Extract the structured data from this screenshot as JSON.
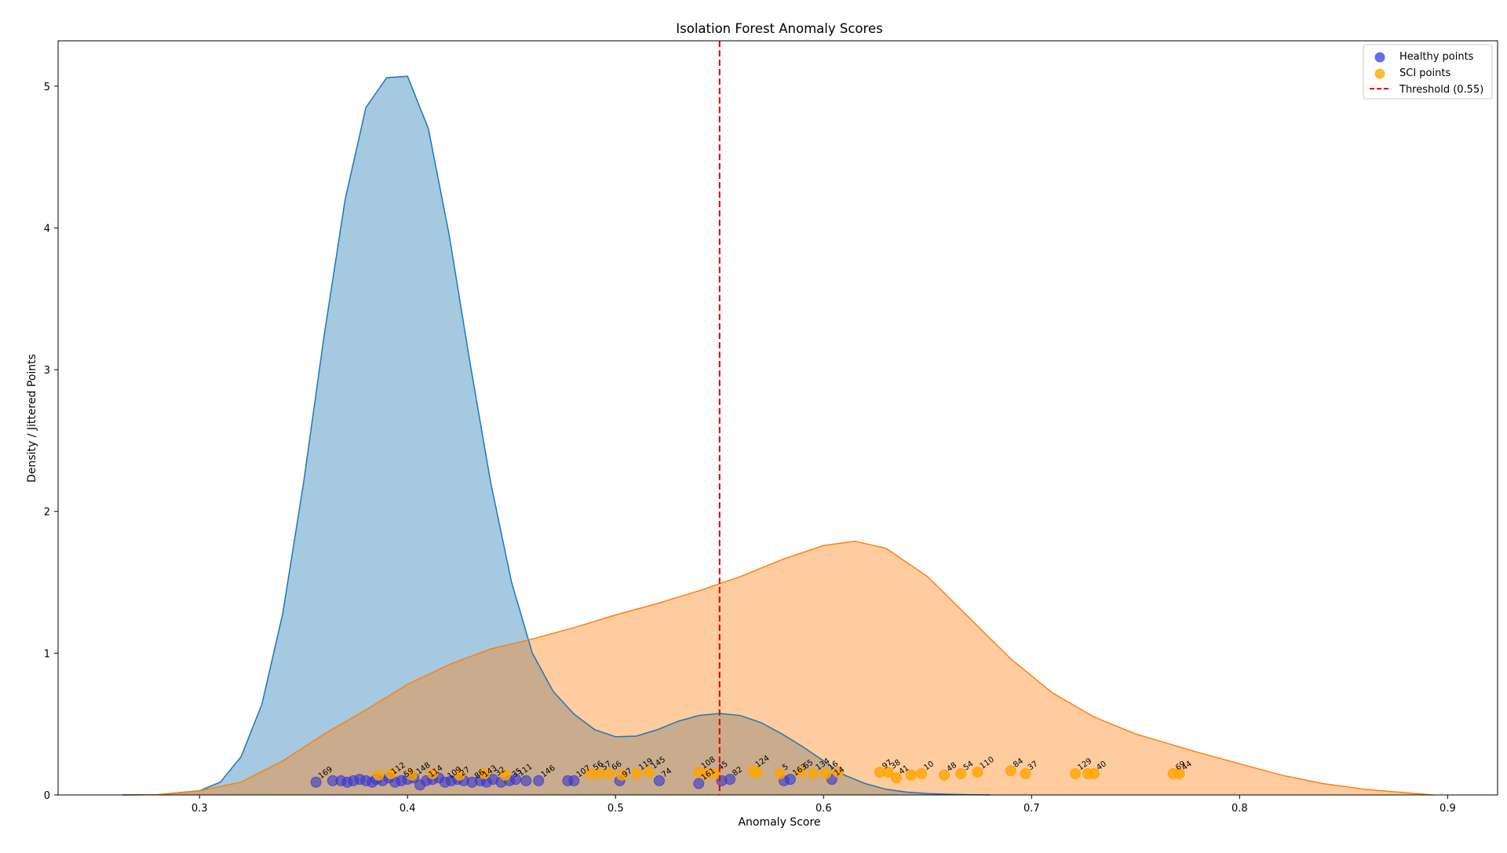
{
  "chart_data": {
    "type": "area",
    "title": "Isolation Forest Anomaly Scores",
    "xlabel": "Anomaly Score",
    "ylabel": "Density / Jittered Points",
    "xlim": [
      0.232,
      0.924
    ],
    "ylim": [
      0,
      5.32
    ],
    "x_ticks": [
      "0.3",
      "0.4",
      "0.5",
      "0.6",
      "0.7",
      "0.8",
      "0.9"
    ],
    "x_tick_values": [
      0.3,
      0.4,
      0.5,
      0.6,
      0.7,
      0.8,
      0.9
    ],
    "y_ticks": [
      "0",
      "1",
      "2",
      "3",
      "4",
      "5"
    ],
    "y_tick_values": [
      0,
      1,
      2,
      3,
      4,
      5
    ],
    "grid": false,
    "legend_position": "top-right",
    "colors": {
      "healthy_fill": "#1f77b4",
      "healthy_line": "#1f77b4",
      "sci_fill": "#ff7f0e",
      "sci_line": "#ff7f0e",
      "healthy_points": "#3535d0",
      "sci_points": "#ffa500",
      "threshold": "#e00000",
      "label_dark": "#333333",
      "label_red": "#e52222"
    },
    "threshold": {
      "value": 0.55,
      "label": "Threshold (0.55)"
    },
    "legend": [
      {
        "key": "healthy",
        "label": "Healthy points",
        "color": "#6a6ae6",
        "kind": "marker"
      },
      {
        "key": "sci",
        "label": "SCI points",
        "color": "#ffbb33",
        "kind": "marker"
      },
      {
        "key": "threshold",
        "label": "Threshold (0.55)",
        "color": "#e00000",
        "kind": "dashed"
      }
    ],
    "series": [
      {
        "key": "healthy_density",
        "kind": "density",
        "x": [
          0.263,
          0.28,
          0.3,
          0.31,
          0.32,
          0.33,
          0.34,
          0.35,
          0.36,
          0.37,
          0.38,
          0.39,
          0.4,
          0.41,
          0.42,
          0.43,
          0.44,
          0.45,
          0.46,
          0.47,
          0.48,
          0.49,
          0.5,
          0.51,
          0.52,
          0.53,
          0.54,
          0.55,
          0.56,
          0.57,
          0.58,
          0.59,
          0.6,
          0.61,
          0.62,
          0.63,
          0.64,
          0.65,
          0.66,
          0.67,
          0.68
        ],
        "y": [
          0,
          0.002,
          0.03,
          0.09,
          0.27,
          0.64,
          1.28,
          2.2,
          3.25,
          4.2,
          4.85,
          5.06,
          5.07,
          4.7,
          3.95,
          3.05,
          2.2,
          1.5,
          1.0,
          0.73,
          0.57,
          0.46,
          0.41,
          0.415,
          0.46,
          0.52,
          0.56,
          0.575,
          0.56,
          0.51,
          0.43,
          0.34,
          0.24,
          0.14,
          0.08,
          0.04,
          0.02,
          0.01,
          0.005,
          0.002,
          0
        ]
      },
      {
        "key": "sci_density",
        "kind": "density",
        "x": [
          0.263,
          0.28,
          0.3,
          0.32,
          0.34,
          0.36,
          0.38,
          0.4,
          0.42,
          0.44,
          0.46,
          0.48,
          0.5,
          0.52,
          0.54,
          0.56,
          0.58,
          0.6,
          0.615,
          0.63,
          0.65,
          0.67,
          0.69,
          0.71,
          0.73,
          0.75,
          0.78,
          0.8,
          0.82,
          0.84,
          0.86,
          0.88,
          0.893
        ],
        "y": [
          0,
          0.002,
          0.03,
          0.09,
          0.24,
          0.43,
          0.6,
          0.78,
          0.92,
          1.03,
          1.1,
          1.18,
          1.27,
          1.35,
          1.44,
          1.54,
          1.66,
          1.76,
          1.79,
          1.74,
          1.54,
          1.25,
          0.96,
          0.72,
          0.55,
          0.43,
          0.3,
          0.22,
          0.14,
          0.08,
          0.04,
          0.015,
          0
        ]
      }
    ],
    "healthy_points": [
      {
        "x": 0.356,
        "y": 0.09,
        "label": "169"
      },
      {
        "x": 0.364,
        "y": 0.1,
        "label": ""
      },
      {
        "x": 0.368,
        "y": 0.1,
        "label": ""
      },
      {
        "x": 0.371,
        "y": 0.09,
        "label": ""
      },
      {
        "x": 0.374,
        "y": 0.1,
        "label": ""
      },
      {
        "x": 0.377,
        "y": 0.11,
        "label": ""
      },
      {
        "x": 0.38,
        "y": 0.1,
        "label": ""
      },
      {
        "x": 0.383,
        "y": 0.09,
        "label": ""
      },
      {
        "x": 0.385,
        "y": 0.11,
        "label": ""
      },
      {
        "x": 0.388,
        "y": 0.1,
        "label": ""
      },
      {
        "x": 0.391,
        "y": 0.12,
        "label": "112"
      },
      {
        "x": 0.394,
        "y": 0.09,
        "label": ""
      },
      {
        "x": 0.397,
        "y": 0.1,
        "label": "59"
      },
      {
        "x": 0.4,
        "y": 0.11,
        "label": ""
      },
      {
        "x": 0.403,
        "y": 0.12,
        "label": "148"
      },
      {
        "x": 0.406,
        "y": 0.07,
        "label": ""
      },
      {
        "x": 0.409,
        "y": 0.1,
        "label": "114"
      },
      {
        "x": 0.412,
        "y": 0.11,
        "label": ""
      },
      {
        "x": 0.415,
        "y": 0.12,
        "label": ""
      },
      {
        "x": 0.418,
        "y": 0.09,
        "label": "109"
      },
      {
        "x": 0.421,
        "y": 0.1,
        "label": ""
      },
      {
        "x": 0.424,
        "y": 0.11,
        "label": "27"
      },
      {
        "x": 0.427,
        "y": 0.1,
        "label": ""
      },
      {
        "x": 0.431,
        "y": 0.09,
        "label": "86"
      },
      {
        "x": 0.435,
        "y": 0.1,
        "label": "143"
      },
      {
        "x": 0.438,
        "y": 0.09,
        "label": ""
      },
      {
        "x": 0.441,
        "y": 0.11,
        "label": "32"
      },
      {
        "x": 0.445,
        "y": 0.09,
        "label": ""
      },
      {
        "x": 0.449,
        "y": 0.1,
        "label": "35"
      },
      {
        "x": 0.452,
        "y": 0.11,
        "label": "111"
      },
      {
        "x": 0.457,
        "y": 0.1,
        "label": ""
      },
      {
        "x": 0.463,
        "y": 0.1,
        "label": "146"
      },
      {
        "x": 0.477,
        "y": 0.1,
        "label": ""
      },
      {
        "x": 0.48,
        "y": 0.1,
        "label": "107"
      },
      {
        "x": 0.502,
        "y": 0.1,
        "label": "97"
      },
      {
        "x": 0.521,
        "y": 0.1,
        "label": "74"
      },
      {
        "x": 0.54,
        "y": 0.08,
        "label": "161"
      },
      {
        "x": 0.551,
        "y": 0.1,
        "label": ""
      },
      {
        "x": 0.555,
        "y": 0.11,
        "label": "82"
      },
      {
        "x": 0.581,
        "y": 0.1,
        "label": ""
      },
      {
        "x": 0.584,
        "y": 0.11,
        "label": "163"
      },
      {
        "x": 0.604,
        "y": 0.11,
        "label": "14"
      }
    ],
    "sci_points": [
      {
        "x": 0.386,
        "y": 0.14,
        "label": ""
      },
      {
        "x": 0.392,
        "y": 0.15,
        "label": ""
      },
      {
        "x": 0.402,
        "y": 0.14,
        "label": ""
      },
      {
        "x": 0.412,
        "y": 0.15,
        "label": ""
      },
      {
        "x": 0.425,
        "y": 0.14,
        "label": ""
      },
      {
        "x": 0.437,
        "y": 0.15,
        "label": ""
      },
      {
        "x": 0.447,
        "y": 0.14,
        "label": ""
      },
      {
        "x": 0.488,
        "y": 0.15,
        "label": "56"
      },
      {
        "x": 0.492,
        "y": 0.15,
        "label": "57"
      },
      {
        "x": 0.497,
        "y": 0.15,
        "label": "66"
      },
      {
        "x": 0.503,
        "y": 0.14,
        "label": ""
      },
      {
        "x": 0.51,
        "y": 0.15,
        "label": "119"
      },
      {
        "x": 0.516,
        "y": 0.16,
        "label": "145"
      },
      {
        "x": 0.54,
        "y": 0.16,
        "label": "108"
      },
      {
        "x": 0.544,
        "y": 0.15,
        "label": ""
      },
      {
        "x": 0.548,
        "y": 0.15,
        "label": "45"
      },
      {
        "x": 0.566,
        "y": 0.17,
        "label": "124"
      },
      {
        "x": 0.568,
        "y": 0.16,
        "label": ""
      },
      {
        "x": 0.579,
        "y": 0.15,
        "label": "5"
      },
      {
        "x": 0.589,
        "y": 0.16,
        "label": "65"
      },
      {
        "x": 0.595,
        "y": 0.15,
        "label": "134"
      },
      {
        "x": 0.601,
        "y": 0.15,
        "label": "16"
      },
      {
        "x": 0.607,
        "y": 0.16,
        "label": ""
      },
      {
        "x": 0.627,
        "y": 0.16,
        "label": "97"
      },
      {
        "x": 0.631,
        "y": 0.16,
        "label": "38"
      },
      {
        "x": 0.635,
        "y": 0.12,
        "label": "41"
      },
      {
        "x": 0.642,
        "y": 0.14,
        "label": ""
      },
      {
        "x": 0.647,
        "y": 0.15,
        "label": "10"
      },
      {
        "x": 0.658,
        "y": 0.14,
        "label": "48"
      },
      {
        "x": 0.666,
        "y": 0.15,
        "label": "54"
      },
      {
        "x": 0.674,
        "y": 0.16,
        "label": "110"
      },
      {
        "x": 0.69,
        "y": 0.17,
        "label": "84"
      },
      {
        "x": 0.697,
        "y": 0.15,
        "label": "37"
      },
      {
        "x": 0.721,
        "y": 0.15,
        "label": "129"
      },
      {
        "x": 0.727,
        "y": 0.15,
        "label": ""
      },
      {
        "x": 0.73,
        "y": 0.15,
        "label": "40"
      },
      {
        "x": 0.768,
        "y": 0.15,
        "label": "69"
      },
      {
        "x": 0.771,
        "y": 0.15,
        "label": "44"
      }
    ]
  }
}
